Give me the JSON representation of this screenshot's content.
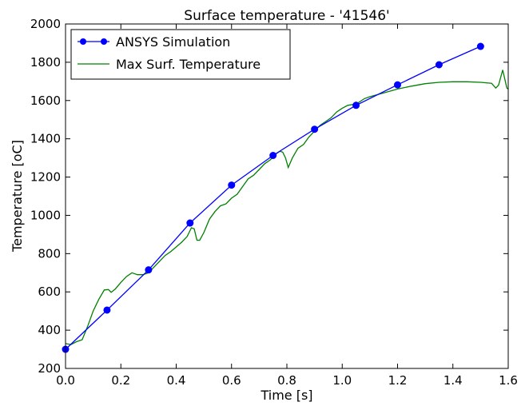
{
  "chart_data": {
    "type": "line",
    "title": "Surface temperature - '41546'",
    "xlabel": "Time [s]",
    "ylabel": "Temperature [oC]",
    "xlim": [
      0.0,
      1.6
    ],
    "ylim": [
      200,
      2000
    ],
    "xticks": [
      "0.0",
      "0.2",
      "0.4",
      "0.6",
      "0.8",
      "1.0",
      "1.2",
      "1.4",
      "1.6"
    ],
    "yticks": [
      "200",
      "400",
      "600",
      "800",
      "1000",
      "1200",
      "1400",
      "1600",
      "1800",
      "2000"
    ],
    "grid": false,
    "legend_position": "upper-left",
    "series": [
      {
        "name": "ANSYS Simulation",
        "color": "#0000ff",
        "marker": "circle",
        "x": [
          0.0,
          0.15,
          0.3,
          0.45,
          0.6,
          0.75,
          0.9,
          1.05,
          1.2,
          1.35,
          1.5
        ],
        "y": [
          300,
          505,
          715,
          960,
          1158,
          1313,
          1450,
          1575,
          1682,
          1787,
          1883
        ]
      },
      {
        "name": "Max Surf. Temperature",
        "color": "#008000",
        "marker": "none",
        "x": [
          0.0,
          0.02,
          0.04,
          0.06,
          0.08,
          0.1,
          0.12,
          0.14,
          0.155,
          0.165,
          0.18,
          0.2,
          0.22,
          0.24,
          0.26,
          0.28,
          0.3,
          0.32,
          0.34,
          0.36,
          0.38,
          0.4,
          0.42,
          0.44,
          0.455,
          0.465,
          0.475,
          0.485,
          0.5,
          0.52,
          0.54,
          0.56,
          0.58,
          0.6,
          0.62,
          0.64,
          0.66,
          0.68,
          0.7,
          0.72,
          0.74,
          0.76,
          0.775,
          0.785,
          0.795,
          0.805,
          0.82,
          0.84,
          0.86,
          0.88,
          0.9,
          0.92,
          0.94,
          0.96,
          0.98,
          1.0,
          1.02,
          1.04,
          1.06,
          1.08,
          1.1,
          1.15,
          1.2,
          1.25,
          1.3,
          1.35,
          1.4,
          1.45,
          1.5,
          1.54,
          1.555,
          1.565,
          1.58,
          1.595,
          1.6
        ],
        "y": [
          330,
          325,
          340,
          350,
          420,
          500,
          560,
          610,
          612,
          598,
          615,
          650,
          680,
          700,
          690,
          690,
          700,
          730,
          760,
          790,
          810,
          835,
          860,
          890,
          935,
          930,
          870,
          870,
          910,
          980,
          1020,
          1050,
          1060,
          1090,
          1110,
          1150,
          1190,
          1210,
          1240,
          1270,
          1290,
          1320,
          1335,
          1330,
          1300,
          1250,
          1300,
          1350,
          1370,
          1410,
          1440,
          1470,
          1490,
          1510,
          1540,
          1560,
          1575,
          1580,
          1590,
          1610,
          1620,
          1640,
          1660,
          1675,
          1688,
          1695,
          1698,
          1698,
          1695,
          1690,
          1665,
          1680,
          1760,
          1665,
          1660
        ]
      }
    ]
  }
}
